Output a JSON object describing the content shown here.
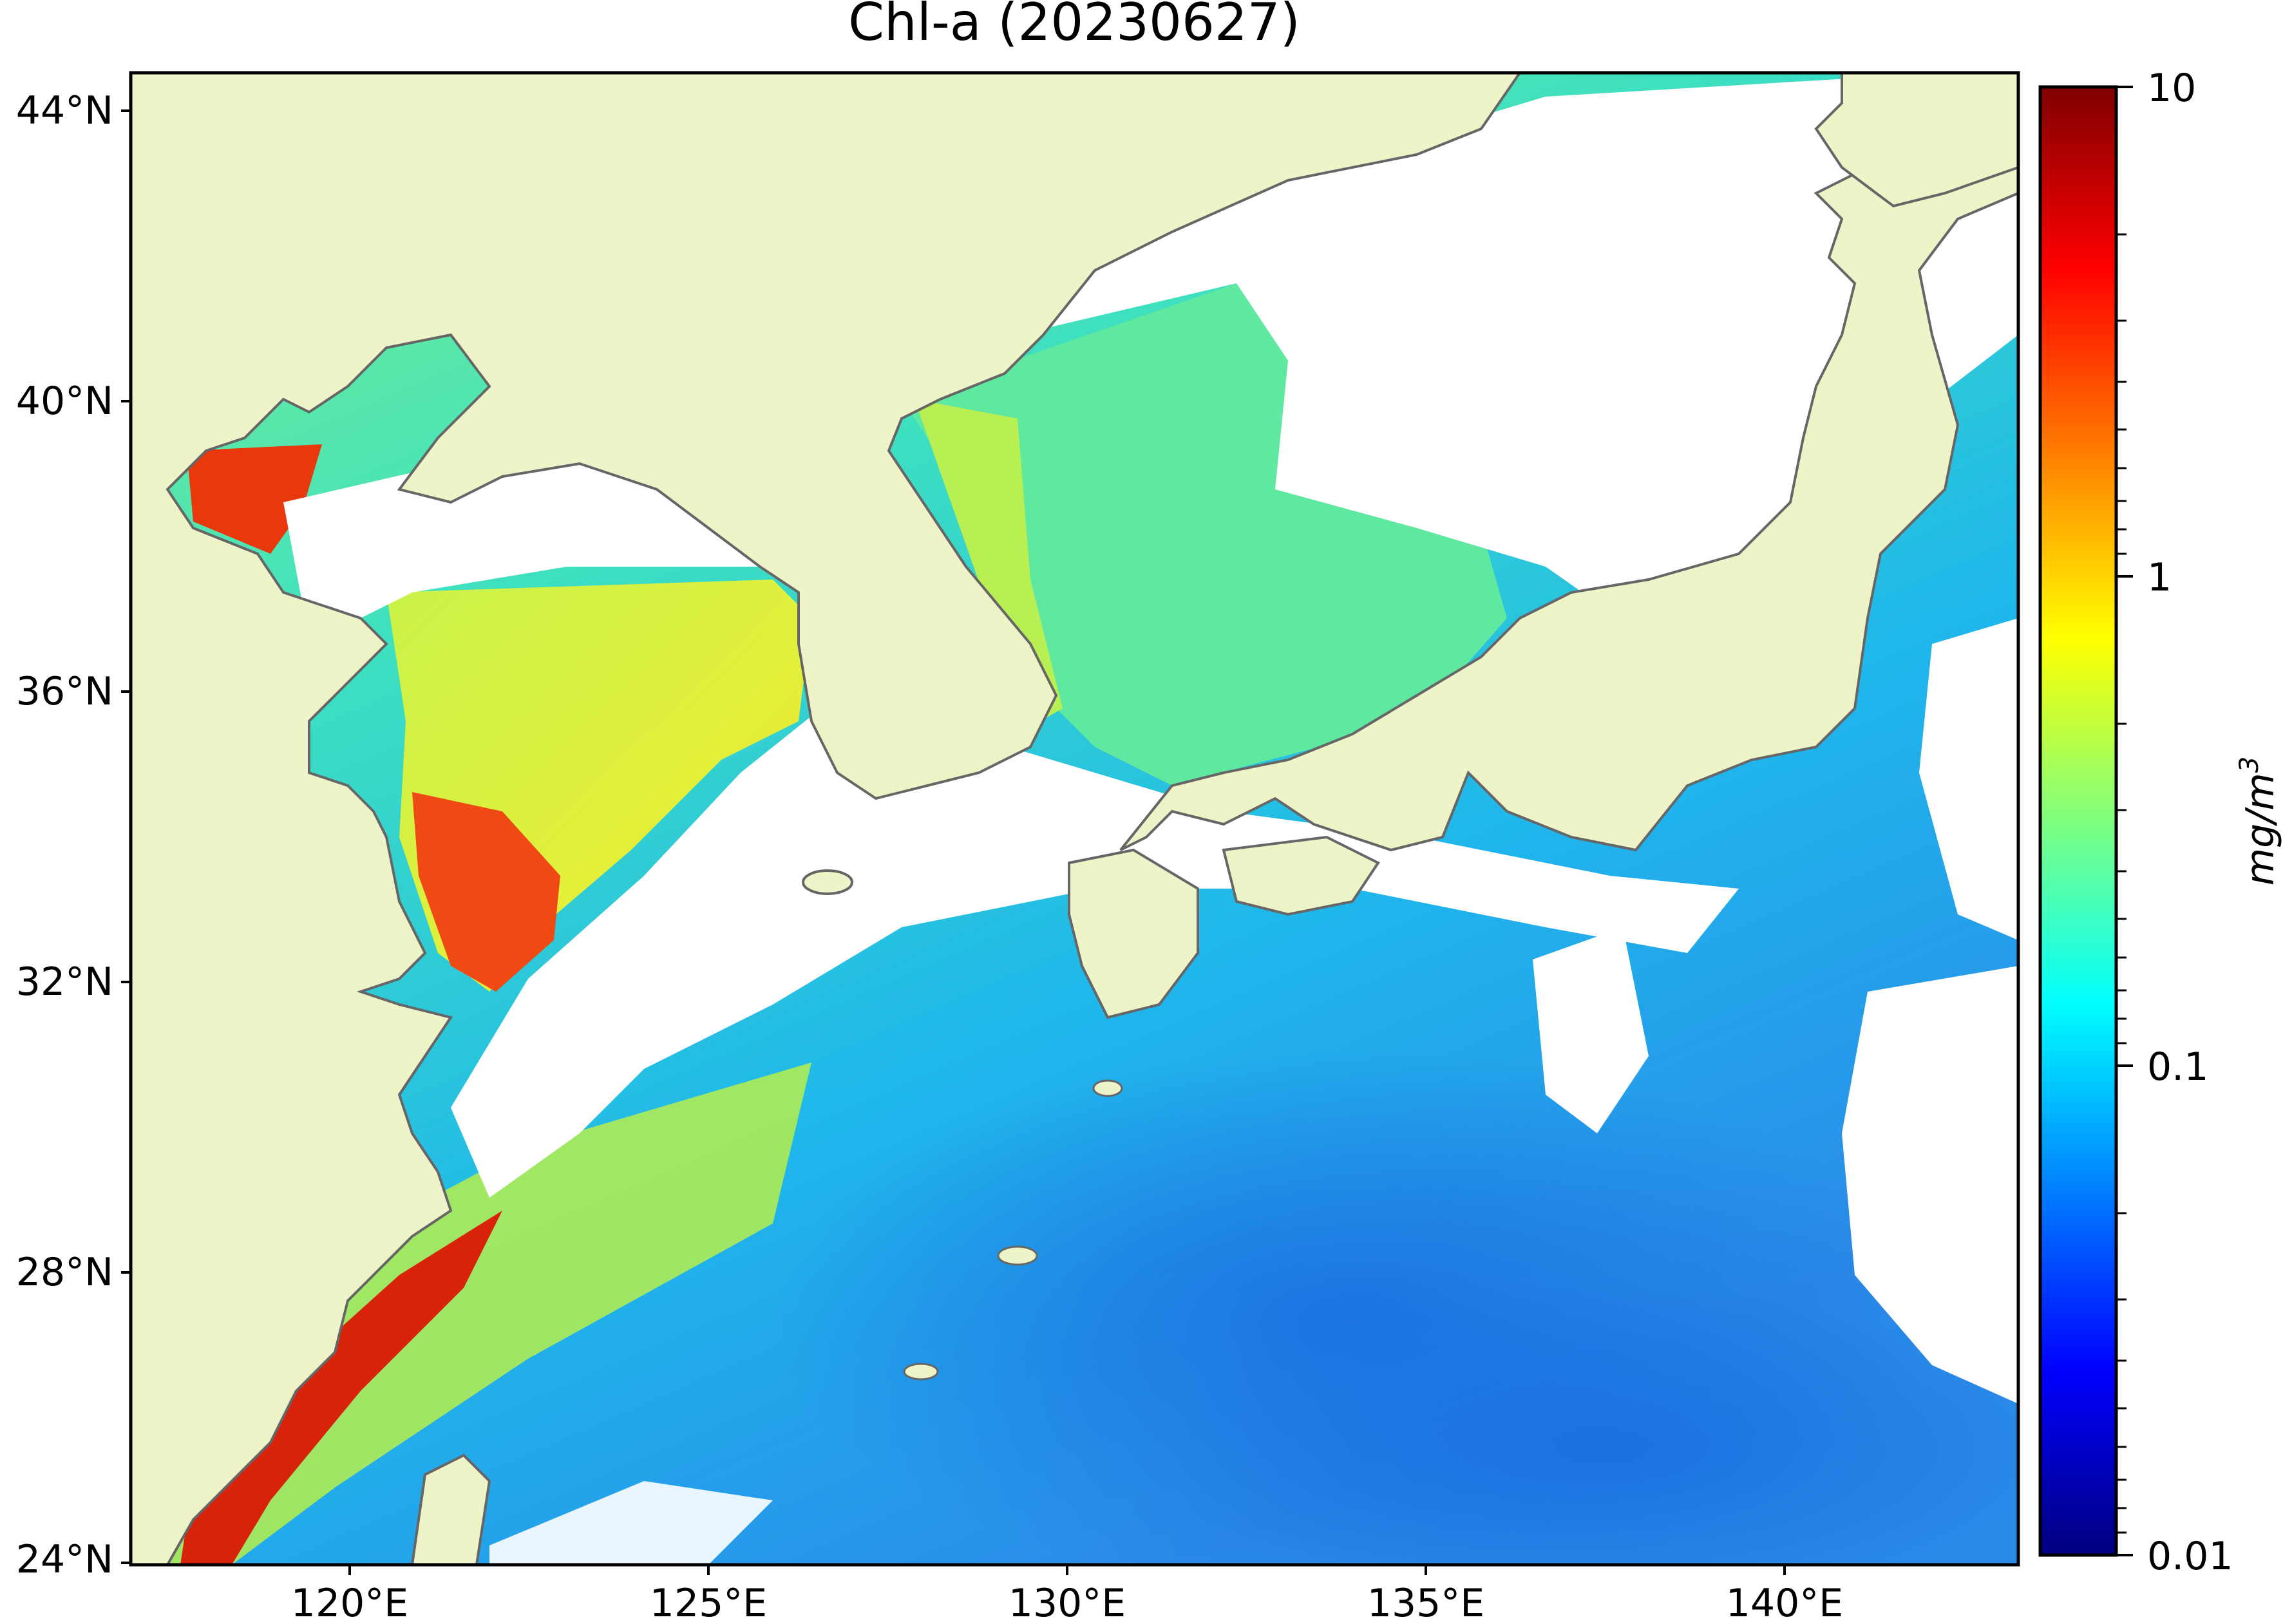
{
  "title": "Chl-a (20230627)",
  "map": {
    "lat_ticks": [
      "44°N",
      "40°N",
      "36°N",
      "32°N",
      "28°N",
      "24°N"
    ],
    "lon_ticks": [
      "120°E",
      "125°E",
      "130°E",
      "135°E",
      "140°E"
    ],
    "lat_range": [
      24,
      44.5
    ],
    "lon_range": [
      117,
      143.3
    ],
    "land_color": "#eff3c8",
    "coastline_color": "#666666",
    "cloud_mask_color": "#ffffff"
  },
  "colorbar": {
    "label": "mg/m³",
    "label_base": "mg/m",
    "label_exp": "3",
    "scale": "log",
    "range": [
      0.01,
      10
    ],
    "ticks": [
      "10",
      "1",
      "0.1",
      "0.01"
    ],
    "tick_values": [
      10,
      1,
      0.1,
      0.01
    ],
    "colormap": "jet",
    "colors": [
      "#00007f",
      "#0000ff",
      "#007fff",
      "#00ffff",
      "#7fff7f",
      "#ffff00",
      "#ff7f00",
      "#ff0000",
      "#7f0000"
    ]
  }
}
